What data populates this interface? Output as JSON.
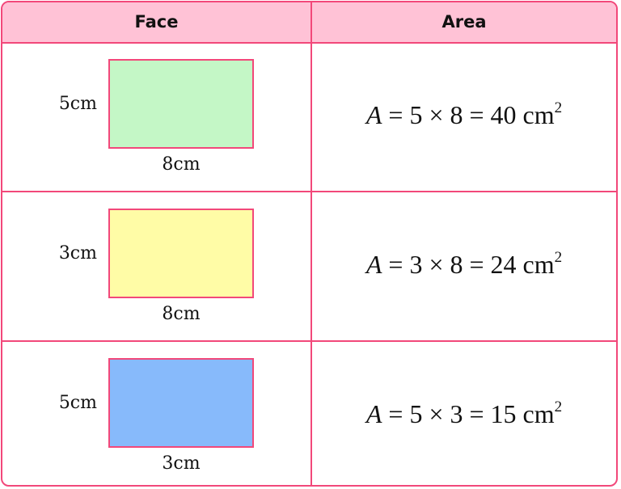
{
  "headers": [
    "Face",
    "Area"
  ],
  "rows": [
    {
      "height_label": "5cm",
      "width_label": "8cm",
      "fill": "#c4f7c6",
      "var": "A",
      "formula": "= 5 × 8 = 40 cm",
      "exp": "2"
    },
    {
      "height_label": "3cm",
      "width_label": "8cm",
      "fill": "#fffca6",
      "var": "A",
      "formula": "= 3 × 8 = 24 cm",
      "exp": "2"
    },
    {
      "height_label": "5cm",
      "width_label": "3cm",
      "fill": "#87bafb",
      "var": "A",
      "formula": "= 5 × 3 = 15 cm",
      "exp": "2"
    }
  ],
  "colors": {
    "border": "#f2487a",
    "header_bg": "#ffc2d6"
  }
}
